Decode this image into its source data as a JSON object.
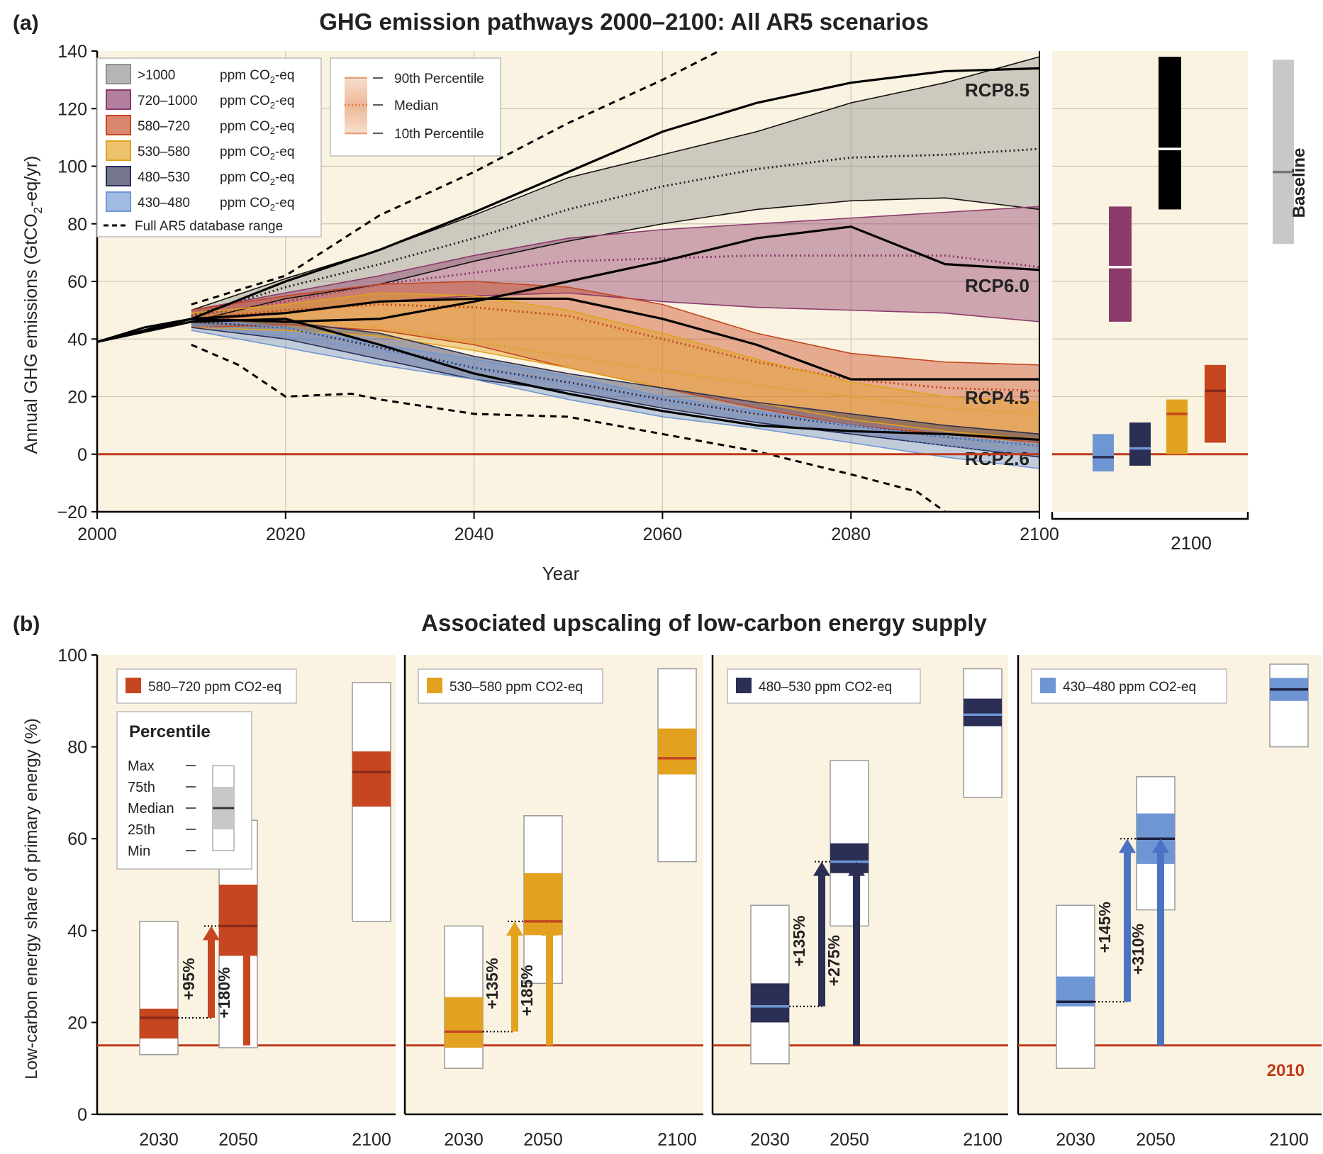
{
  "colors": {
    "panel_bg": "#fbf3e1",
    "zero_line": "#c0391b",
    "gt1000": "#8f8f8f",
    "c720": "#8b3a6b",
    "c580": "#c5461f",
    "c530": "#e2a21f",
    "c480": "#2b2e55",
    "c430": "#6f96d4",
    "baseline": "#c8c8c8",
    "c430_dark": "#4a73c4"
  },
  "panel_a": {
    "label": "(a)",
    "title": "GHG emission pathways 2000–2100: All AR5 scenarios",
    "xlabel": "Year",
    "ylabel_main": "Annual GHG emissions (GtCO",
    "ylabel_sub": "2",
    "ylabel_end": "-eq/yr)",
    "side_xlabel": "2100",
    "baseline_label": "Baseline",
    "legend": {
      "items": [
        {
          "key": "gt1000",
          "range": ">1000",
          "unit": "ppm CO",
          "sub": "2",
          "tail": "-eq"
        },
        {
          "key": "c720",
          "range": "720–1000",
          "unit": "ppm CO",
          "sub": "2",
          "tail": "-eq"
        },
        {
          "key": "c580",
          "range": "580–720",
          "unit": "ppm CO",
          "sub": "2",
          "tail": "-eq"
        },
        {
          "key": "c530",
          "range": "530–580",
          "unit": "ppm CO",
          "sub": "2",
          "tail": "-eq"
        },
        {
          "key": "c480",
          "range": "480–530",
          "unit": "ppm CO",
          "sub": "2",
          "tail": "-eq"
        },
        {
          "key": "c430",
          "range": "430–480",
          "unit": "ppm CO",
          "sub": "2",
          "tail": "-eq"
        }
      ],
      "full_range": "Full AR5 database range",
      "percentiles": [
        "90th Percentile",
        "Median",
        "10th Percentile"
      ]
    }
  },
  "panel_b": {
    "label": "(b)",
    "title": "Associated upscaling of low-carbon energy supply",
    "ylabel": "Low-carbon energy share of primary energy (%)",
    "ref_label": "2010",
    "percentile_legend": {
      "title": "Percentile",
      "labels": [
        "Max",
        "75th",
        "Median",
        "25th",
        "Min"
      ]
    }
  },
  "chart_data": [
    {
      "type": "area",
      "title": "GHG emission pathways 2000–2100: All AR5 scenarios",
      "xlabel": "Year",
      "ylabel": "Annual GHG emissions (GtCO2-eq/yr)",
      "xlim": [
        2000,
        2100
      ],
      "ylim": [
        -20,
        140
      ],
      "x_ticks": [
        2000,
        2020,
        2040,
        2060,
        2080,
        2100
      ],
      "y_ticks": [
        -20,
        0,
        20,
        40,
        60,
        80,
        100,
        120,
        140
      ],
      "grid": true,
      "legend_position": "top-left",
      "historical": {
        "x": [
          2000,
          2005,
          2010
        ],
        "y": [
          39,
          44,
          47
        ]
      },
      "bands": [
        {
          "name": "430–480 ppm CO2-eq",
          "key": "c430",
          "x": [
            2010,
            2020,
            2030,
            2040,
            2050,
            2060,
            2070,
            2080,
            2090,
            2100
          ],
          "p90": [
            47,
            44,
            38,
            33,
            27,
            20,
            15,
            10,
            6,
            3
          ],
          "median": [
            45,
            41,
            36,
            30,
            24,
            18,
            12,
            8,
            3,
            0
          ],
          "p10": [
            43,
            37,
            31,
            26,
            19,
            13,
            9,
            4,
            -1,
            -5
          ]
        },
        {
          "name": "480–530 ppm CO2-eq",
          "key": "c480",
          "x": [
            2010,
            2020,
            2030,
            2040,
            2050,
            2060,
            2070,
            2080,
            2090,
            2100
          ],
          "p90": [
            47,
            46,
            42,
            34,
            28,
            23,
            18,
            14,
            10,
            7
          ],
          "median": [
            46,
            44,
            37,
            30,
            25,
            19,
            14,
            10,
            6,
            3
          ],
          "p10": [
            44,
            40,
            33,
            26,
            22,
            16,
            11,
            7,
            3,
            -1
          ]
        },
        {
          "name": "530–580 ppm CO2-eq",
          "key": "c530",
          "x": [
            2010,
            2020,
            2030,
            2040,
            2050,
            2060,
            2070,
            2080,
            2090,
            2100
          ],
          "p90": [
            49,
            52,
            56,
            55,
            50,
            42,
            33,
            25,
            20,
            18
          ],
          "median": [
            47,
            47,
            44,
            39,
            34,
            29,
            24,
            20,
            16,
            14
          ],
          "p10": [
            44,
            43,
            41,
            36,
            30,
            23,
            18,
            12,
            8,
            5
          ]
        },
        {
          "name": "580–720 ppm CO2-eq",
          "key": "c580",
          "x": [
            2010,
            2020,
            2030,
            2040,
            2050,
            2060,
            2070,
            2080,
            2090,
            2100
          ],
          "p90": [
            50,
            55,
            59,
            60,
            58,
            52,
            42,
            35,
            32,
            31
          ],
          "median": [
            47,
            50,
            52,
            51,
            48,
            40,
            32,
            26,
            23,
            22
          ],
          "p10": [
            44,
            45,
            43,
            38,
            30,
            23,
            16,
            10,
            7,
            4
          ]
        },
        {
          "name": "720–1000 ppm CO2-eq",
          "key": "c720",
          "x": [
            2010,
            2020,
            2030,
            2040,
            2050,
            2060,
            2070,
            2080,
            2090,
            2100
          ],
          "p90": [
            50,
            56,
            62,
            69,
            75,
            78,
            80,
            82,
            84,
            86
          ],
          "median": [
            48,
            53,
            59,
            63,
            67,
            68,
            69,
            69,
            69,
            65
          ],
          "p10": [
            46,
            49,
            53,
            55,
            56,
            53,
            51,
            50,
            49,
            46
          ]
        },
        {
          "name": ">1000 ppm CO2-eq",
          "key": "gt1000",
          "x": [
            2010,
            2020,
            2030,
            2040,
            2050,
            2060,
            2070,
            2080,
            2090,
            2100
          ],
          "p90": [
            50,
            61,
            71,
            83,
            96,
            104,
            112,
            122,
            129,
            138
          ],
          "median": [
            48,
            58,
            66,
            75,
            85,
            93,
            99,
            103,
            104,
            106
          ],
          "p10": [
            46,
            54,
            59,
            67,
            74,
            80,
            85,
            88,
            89,
            85
          ]
        }
      ],
      "full_range_upper": {
        "x": [
          2010,
          2020,
          2030,
          2040,
          2050,
          2060,
          2066
        ],
        "y": [
          52,
          62,
          83,
          98,
          115,
          130,
          140
        ]
      },
      "full_range_lower": {
        "x": [
          2010,
          2015,
          2020,
          2027,
          2030,
          2040,
          2050,
          2060,
          2070,
          2080,
          2087,
          2090
        ],
        "y": [
          38,
          31,
          20,
          21,
          19,
          14,
          13,
          7,
          1,
          -7,
          -13,
          -20
        ]
      },
      "rcp_lines": [
        {
          "name": "RCP8.5",
          "x": [
            2000,
            2010,
            2020,
            2030,
            2040,
            2050,
            2060,
            2070,
            2080,
            2090,
            2100
          ],
          "y": [
            39,
            47,
            60,
            71,
            84,
            98,
            112,
            122,
            129,
            133,
            134
          ]
        },
        {
          "name": "RCP6.0",
          "x": [
            2000,
            2010,
            2020,
            2030,
            2040,
            2050,
            2060,
            2070,
            2080,
            2090,
            2100
          ],
          "y": [
            39,
            47,
            46,
            47,
            53,
            60,
            67,
            75,
            79,
            66,
            64
          ]
        },
        {
          "name": "RCP4.5",
          "x": [
            2000,
            2010,
            2020,
            2030,
            2040,
            2050,
            2060,
            2070,
            2080,
            2090,
            2100
          ],
          "y": [
            39,
            47,
            49,
            53,
            54,
            54,
            47,
            38,
            26,
            26,
            26
          ]
        },
        {
          "name": "RCP2.6",
          "x": [
            2000,
            2010,
            2020,
            2030,
            2040,
            2050,
            2060,
            2070,
            2080,
            2090,
            2100
          ],
          "y": [
            39,
            46,
            47,
            38,
            28,
            21,
            15,
            10,
            8,
            7,
            5
          ]
        }
      ],
      "ranges_2100": [
        {
          "key": "c430",
          "p10": -6,
          "median": -1,
          "p90": 7
        },
        {
          "key": "c480",
          "p10": -4,
          "median": 2,
          "p90": 11
        },
        {
          "key": "c530",
          "p10": 0,
          "median": 14,
          "p90": 19
        },
        {
          "key": "c580",
          "p10": 4,
          "median": 22,
          "p90": 31
        },
        {
          "key": "c720",
          "p10": 46,
          "median": 65,
          "p90": 86
        },
        {
          "key": "gt1000",
          "p10": 85,
          "median": 106,
          "p90": 138
        },
        {
          "key": "baseline",
          "p10": 73,
          "median": 98,
          "p90": 137
        }
      ]
    },
    {
      "type": "bar",
      "title": "Associated upscaling of low-carbon energy supply",
      "ylabel": "Low-carbon energy share of primary energy (%)",
      "ylim": [
        0,
        100
      ],
      "y_ticks": [
        0,
        20,
        40,
        60,
        80,
        100
      ],
      "reference_2010": 15,
      "grid": false,
      "categories": [
        "2030",
        "2050",
        "2100"
      ],
      "series": [
        {
          "name": "580–720 ppm CO2-eq",
          "key": "c580",
          "boxes": [
            {
              "min": 13,
              "p25": 16.5,
              "median": 21,
              "p75": 23,
              "max": 42
            },
            {
              "min": 14.5,
              "p25": 34.5,
              "median": 41,
              "p75": 50,
              "max": 64
            },
            {
              "min": 42,
              "p25": 67,
              "median": 74.5,
              "p75": 79,
              "max": 94
            }
          ],
          "arrows": [
            {
              "label": "+95%",
              "from": 21,
              "to": 41
            },
            {
              "label": "+180%",
              "from": 15,
              "to": 41
            }
          ]
        },
        {
          "name": "530–580 ppm CO2-eq",
          "key": "c530",
          "boxes": [
            {
              "min": 10,
              "p25": 14.5,
              "median": 18,
              "p75": 25.5,
              "max": 41
            },
            {
              "min": 28.5,
              "p25": 39,
              "median": 42,
              "p75": 52.5,
              "max": 65
            },
            {
              "min": 55,
              "p25": 74,
              "median": 77.5,
              "p75": 84,
              "max": 97
            }
          ],
          "arrows": [
            {
              "label": "+135%",
              "from": 18,
              "to": 42
            },
            {
              "label": "+185%",
              "from": 15,
              "to": 42
            }
          ]
        },
        {
          "name": "480–530 ppm CO2-eq",
          "key": "c480",
          "boxes": [
            {
              "min": 11,
              "p25": 20,
              "median": 23.5,
              "p75": 28.5,
              "max": 45.5
            },
            {
              "min": 41,
              "p25": 52.5,
              "median": 55,
              "p75": 59,
              "max": 77
            },
            {
              "min": 69,
              "p25": 84.5,
              "median": 87,
              "p75": 90.5,
              "max": 97
            }
          ],
          "arrows": [
            {
              "label": "+135%",
              "from": 23.5,
              "to": 55
            },
            {
              "label": "+275%",
              "from": 15,
              "to": 55
            }
          ]
        },
        {
          "name": "430–480 ppm CO2-eq",
          "key": "c430",
          "boxes": [
            {
              "min": 10,
              "p25": 23.5,
              "median": 24.5,
              "p75": 30,
              "max": 45.5
            },
            {
              "min": 44.5,
              "p25": 54.5,
              "median": 60,
              "p75": 65.5,
              "max": 73.5
            },
            {
              "min": 80,
              "p25": 90,
              "median": 92.5,
              "p75": 95,
              "max": 98
            }
          ],
          "arrows": [
            {
              "label": "+145%",
              "from": 24.5,
              "to": 60
            },
            {
              "label": "+310%",
              "from": 15,
              "to": 60
            }
          ]
        }
      ]
    }
  ]
}
